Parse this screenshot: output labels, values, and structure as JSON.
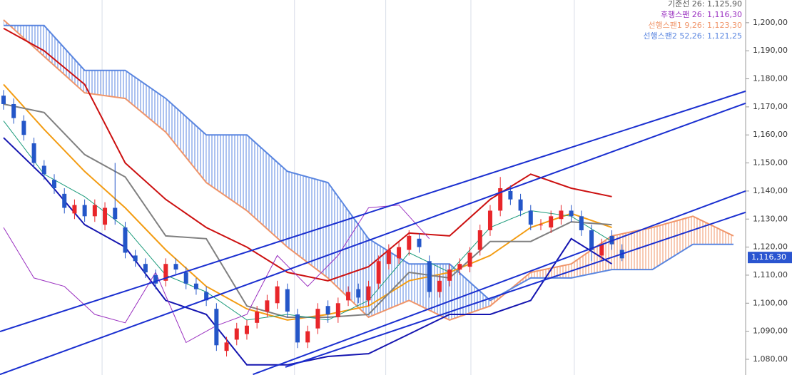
{
  "chart_data": {
    "type": "candlestick",
    "xlim": [
      -0.35,
      73.2
    ],
    "ylim": [
      1074.4,
      1208.1
    ],
    "yticks": [
      {
        "value": 1080,
        "label": "1,080,00"
      },
      {
        "value": 1090,
        "label": "1,090,00"
      },
      {
        "value": 1100,
        "label": "1,100,00"
      },
      {
        "value": 1110,
        "label": "1,110,00"
      },
      {
        "value": 1120,
        "label": "1,120,00"
      },
      {
        "value": 1130,
        "label": "1,130,00"
      },
      {
        "value": 1140,
        "label": "1,140,00"
      },
      {
        "value": 1150,
        "label": "1,150,00"
      },
      {
        "value": 1160,
        "label": "1,160,00"
      },
      {
        "value": 1170,
        "label": "1,170,00"
      },
      {
        "value": 1180,
        "label": "1,180,00"
      },
      {
        "value": 1190,
        "label": "1,190,00"
      },
      {
        "value": 1200,
        "label": "1,200,00"
      }
    ],
    "xgrid": [
      9.72,
      28.7,
      37.7,
      46.1,
      56.3
    ],
    "candles": {
      "up_color": "#e8262a",
      "down_color": "#2456c8",
      "open": [
        1174,
        1171,
        1165,
        1157,
        1149,
        1144,
        1139,
        1132,
        1135,
        1131,
        1128,
        1134,
        1127,
        1117,
        1114,
        1110,
        1108,
        1114,
        1111,
        1107,
        1104,
        1098,
        1083,
        1087,
        1089,
        1093,
        1097,
        1100,
        1105,
        1096,
        1086,
        1091,
        1099,
        1095,
        1101,
        1105,
        1101,
        1107,
        1114,
        1116,
        1119,
        1123,
        1115,
        1104,
        1108,
        1112,
        1113,
        1119,
        1126,
        1133,
        1140,
        1137,
        1133,
        1128,
        1127,
        1130,
        1133,
        1131,
        1126,
        1117,
        1124,
        1119
      ],
      "high": [
        1176,
        1173,
        1167,
        1159,
        1151,
        1146,
        1141,
        1137,
        1137,
        1137,
        1136,
        1150,
        1129,
        1119,
        1116,
        1112,
        1116,
        1116,
        1113,
        1109,
        1106,
        1100,
        1088,
        1093,
        1094,
        1099,
        1103,
        1108,
        1107,
        1098,
        1092,
        1100,
        1101,
        1102,
        1106,
        1107,
        1108,
        1117,
        1121,
        1122,
        1126,
        1125,
        1117,
        1110,
        1114,
        1116,
        1120,
        1128,
        1135,
        1145,
        1142,
        1139,
        1135,
        1130,
        1133,
        1135,
        1135,
        1133,
        1128,
        1123,
        1126,
        1121
      ],
      "low": [
        1169,
        1164,
        1158,
        1148,
        1144,
        1139,
        1132,
        1130,
        1129,
        1129,
        1126,
        1128,
        1116,
        1113,
        1109,
        1105,
        1106,
        1110,
        1105,
        1103,
        1099,
        1083,
        1081,
        1085,
        1087,
        1091,
        1095,
        1098,
        1095,
        1084,
        1084,
        1089,
        1093,
        1093,
        1099,
        1100,
        1099,
        1105,
        1112,
        1114,
        1117,
        1118,
        1102,
        1102,
        1106,
        1110,
        1111,
        1117,
        1124,
        1131,
        1135,
        1131,
        1126,
        1126,
        1125,
        1128,
        1129,
        1124,
        1115,
        1115,
        1119,
        1115
      ],
      "close": [
        1171,
        1166,
        1160,
        1150,
        1146,
        1141,
        1134,
        1135,
        1131,
        1135,
        1134,
        1130,
        1118,
        1115,
        1111,
        1107,
        1114,
        1112,
        1107,
        1105,
        1101,
        1085,
        1086,
        1091,
        1092,
        1097,
        1101,
        1106,
        1097,
        1086,
        1090,
        1098,
        1096,
        1100,
        1104,
        1102,
        1106,
        1115,
        1119,
        1120,
        1124,
        1120,
        1104,
        1108,
        1112,
        1114,
        1118,
        1126,
        1133,
        1141,
        1137,
        1133,
        1128,
        1128,
        1131,
        1133,
        1131,
        1126,
        1119,
        1121,
        1121,
        1116
      ]
    },
    "cloud": {
      "span1_color": "#f0956a",
      "span2_color": "#5a86e0",
      "x": [
        0,
        4,
        8,
        12,
        16,
        20,
        24,
        28,
        32,
        36,
        40,
        44,
        48,
        52,
        56,
        60,
        64,
        68,
        72
      ],
      "span1": [
        1201,
        1188,
        1175,
        1173,
        1161,
        1143,
        1133,
        1120,
        1109,
        1095,
        1101,
        1094,
        1099,
        1111,
        1114,
        1124,
        1127,
        1131,
        1124
      ],
      "span2": [
        1199,
        1199,
        1183,
        1183,
        1173,
        1160,
        1160,
        1147,
        1143,
        1123,
        1114,
        1114,
        1101,
        1109,
        1109,
        1112,
        1112,
        1121,
        1121
      ]
    },
    "lines": [
      {
        "color": "#cc1010",
        "width": 2,
        "x": [
          0,
          4,
          8,
          12,
          16,
          20,
          24,
          28,
          32,
          36,
          40,
          44,
          48,
          52,
          56,
          60
        ],
        "values": [
          1198,
          1190,
          1178,
          1150,
          1137,
          1127,
          1120,
          1111,
          1108,
          1113,
          1125,
          1124,
          1137,
          1146,
          1141,
          1138
        ]
      },
      {
        "color": "#1515b0",
        "width": 2,
        "x": [
          0,
          4,
          8,
          12,
          16,
          20,
          24,
          28,
          32,
          36,
          40,
          44,
          48,
          52,
          56,
          60
        ],
        "values": [
          1159,
          1145,
          1128,
          1120,
          1101,
          1096,
          1078,
          1078,
          1081,
          1082,
          1089,
          1096,
          1096,
          1101,
          1123,
          1114
        ]
      },
      {
        "color": "#f39c12",
        "width": 2,
        "x": [
          0,
          4,
          8,
          12,
          16,
          20,
          24,
          28,
          32,
          36,
          40,
          44,
          48,
          52,
          56,
          60
        ],
        "values": [
          1178,
          1162,
          1147,
          1134,
          1119,
          1106,
          1098,
          1094,
          1096,
          1099,
          1108,
          1111,
          1117,
          1127,
          1132,
          1127
        ]
      },
      {
        "color": "#808080",
        "width": 2,
        "x": [
          0,
          4,
          8,
          12,
          16,
          20,
          24,
          28,
          32,
          36,
          40,
          44,
          48,
          52,
          56,
          60
        ],
        "values": [
          1171,
          1168,
          1153,
          1145,
          1124,
          1123,
          1099,
          1095,
          1095,
          1096,
          1111,
          1109,
          1122,
          1122,
          1129,
          1128
        ]
      },
      {
        "color": "#1a9a7a",
        "width": 1,
        "x": [
          0,
          4,
          8,
          12,
          16,
          20,
          24,
          28,
          32,
          36,
          40,
          44,
          48,
          52,
          56,
          60
        ],
        "values": [
          1165,
          1146,
          1138,
          1127,
          1110,
          1104,
          1094,
          1096,
          1094,
          1101,
          1118,
          1111,
          1127,
          1133,
          1131,
          1122
        ]
      },
      {
        "color": "#9a30c0",
        "width": 1,
        "x": [
          0,
          3,
          6,
          9,
          12,
          15,
          18,
          21,
          24,
          27,
          30,
          33,
          36,
          39,
          42
        ],
        "values": [
          1127,
          1109,
          1106,
          1096,
          1093,
          1111,
          1086,
          1092,
          1096,
          1117,
          1106,
          1117,
          1134,
          1135,
          1123
        ]
      }
    ],
    "trendlines": [
      {
        "color": "#1a2fd0",
        "x": [
          -0.35,
          73.2
        ],
        "values": [
          1089.9,
          1175.6
        ]
      },
      {
        "color": "#1a2fd0",
        "x": [
          -0.35,
          73.2
        ],
        "values": [
          1074.6,
          1171.3
        ]
      },
      {
        "color": "#1a2fd0",
        "x": [
          24.6,
          73.2
        ],
        "values": [
          1074.6,
          1140.0
        ]
      },
      {
        "color": "#1a2fd0",
        "x": [
          27.8,
          73.2
        ],
        "values": [
          1077.2,
          1132.4
        ]
      }
    ],
    "legend": [
      {
        "label": "기준선 26: 1,125,90",
        "color": "#555555"
      },
      {
        "label": "후행스팬 26: 1,116,30",
        "color": "#9a30c0"
      },
      {
        "label": "선행스팬1 9,26: 1,123,30",
        "color": "#f0956a"
      },
      {
        "label": "선행스팬2 52,26: 1,121,25",
        "color": "#5a86e0"
      }
    ],
    "last_price": {
      "value": 1116.3,
      "label": "1,116,30",
      "color": "#2a55d0"
    }
  }
}
